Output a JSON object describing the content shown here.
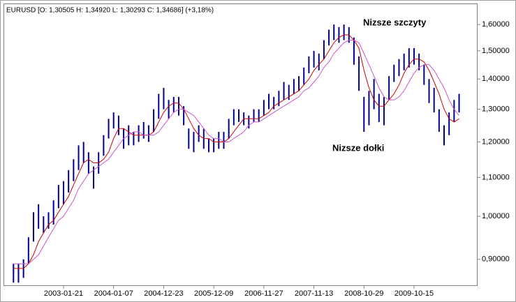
{
  "chart_data": {
    "type": "hilo",
    "title": "EURUSD [O: 1,30505  H: 1,34920  L: 1,30293  C: 1,34686] (+3,18%)",
    "annotations": [
      "Nizsze szczyty",
      "Nizsze dołki"
    ],
    "log_scale": true,
    "grid": false,
    "color": "#00008b",
    "ylim": [
      0.846,
      1.676
    ],
    "yticks": [
      {
        "value": 0.9,
        "label": "0,90000"
      },
      {
        "value": 1.0,
        "label": "1,00000"
      },
      {
        "value": 1.1,
        "label": "1,10000"
      },
      {
        "value": 1.2,
        "label": "1,20000"
      },
      {
        "value": 1.3,
        "label": "1,30000"
      },
      {
        "value": 1.4,
        "label": "1,40000"
      },
      {
        "value": 1.5,
        "label": "1,50000"
      },
      {
        "value": 1.6,
        "label": "1,60000"
      }
    ],
    "categories": [
      null,
      null,
      null,
      null,
      null,
      null,
      null,
      null,
      null,
      null,
      "2003-01-21",
      null,
      null,
      null,
      null,
      null,
      null,
      null,
      null,
      null,
      "2004-01-07",
      null,
      null,
      null,
      null,
      null,
      null,
      null,
      null,
      null,
      "2004-12-23",
      null,
      null,
      null,
      null,
      null,
      null,
      null,
      null,
      null,
      "2005-12-09",
      null,
      null,
      null,
      null,
      null,
      null,
      null,
      null,
      null,
      "2006-11-27",
      null,
      null,
      null,
      null,
      null,
      null,
      null,
      null,
      null,
      "2007-11-13",
      null,
      null,
      null,
      null,
      null,
      null,
      null,
      null,
      null,
      "2008-10-29",
      null,
      null,
      null,
      null,
      null,
      null,
      null,
      null,
      null,
      "2009-10-15",
      null,
      null,
      null,
      null,
      null,
      null,
      null,
      null,
      null
    ],
    "high": [
      0.89,
      0.89,
      0.9,
      0.95,
      1.01,
      1.03,
      1.0,
      1.01,
      1.04,
      1.08,
      1.09,
      1.12,
      1.15,
      1.19,
      1.2,
      1.17,
      1.13,
      1.17,
      1.22,
      1.27,
      1.29,
      1.28,
      1.24,
      1.25,
      1.23,
      1.25,
      1.26,
      1.25,
      1.3,
      1.35,
      1.37,
      1.33,
      1.34,
      1.34,
      1.31,
      1.24,
      1.23,
      1.25,
      1.24,
      1.21,
      1.21,
      1.23,
      1.23,
      1.27,
      1.3,
      1.3,
      1.29,
      1.28,
      1.3,
      1.3,
      1.33,
      1.35,
      1.34,
      1.36,
      1.39,
      1.38,
      1.4,
      1.41,
      1.44,
      1.48,
      1.5,
      1.49,
      1.54,
      1.58,
      1.6,
      1.59,
      1.6,
      1.59,
      1.55,
      1.48,
      1.34,
      1.36,
      1.4,
      1.35,
      1.34,
      1.41,
      1.45,
      1.47,
      1.49,
      1.51,
      1.51,
      1.49,
      1.45,
      1.4,
      1.37,
      1.3,
      1.25,
      1.29,
      1.33,
      1.35
    ],
    "low": [
      0.85,
      0.85,
      0.86,
      0.89,
      0.94,
      0.97,
      0.96,
      0.97,
      0.98,
      1.02,
      1.03,
      1.06,
      1.09,
      1.12,
      1.14,
      1.11,
      1.07,
      1.11,
      1.16,
      1.21,
      1.24,
      1.22,
      1.18,
      1.19,
      1.19,
      1.2,
      1.21,
      1.2,
      1.23,
      1.27,
      1.3,
      1.27,
      1.29,
      1.28,
      1.25,
      1.18,
      1.17,
      1.2,
      1.18,
      1.17,
      1.17,
      1.18,
      1.18,
      1.21,
      1.25,
      1.26,
      1.25,
      1.24,
      1.26,
      1.26,
      1.28,
      1.3,
      1.3,
      1.31,
      1.33,
      1.33,
      1.35,
      1.36,
      1.38,
      1.42,
      1.44,
      1.43,
      1.47,
      1.52,
      1.54,
      1.53,
      1.54,
      1.53,
      1.45,
      1.36,
      1.23,
      1.25,
      1.3,
      1.26,
      1.25,
      1.33,
      1.39,
      1.41,
      1.43,
      1.44,
      1.45,
      1.43,
      1.38,
      1.32,
      1.29,
      1.23,
      1.19,
      1.22,
      1.26,
      1.29
    ],
    "moving_averages": [
      {
        "color": "#cc0000",
        "values": [
          0.88,
          0.88,
          0.88,
          0.89,
          0.91,
          0.94,
          0.96,
          0.98,
          0.99,
          1.01,
          1.03,
          1.05,
          1.08,
          1.11,
          1.14,
          1.15,
          1.14,
          1.14,
          1.15,
          1.17,
          1.21,
          1.24,
          1.24,
          1.23,
          1.22,
          1.22,
          1.22,
          1.22,
          1.23,
          1.26,
          1.29,
          1.31,
          1.32,
          1.32,
          1.3,
          1.27,
          1.24,
          1.22,
          1.21,
          1.21,
          1.2,
          1.2,
          1.2,
          1.21,
          1.23,
          1.25,
          1.27,
          1.27,
          1.27,
          1.27,
          1.28,
          1.29,
          1.31,
          1.32,
          1.33,
          1.34,
          1.35,
          1.36,
          1.38,
          1.4,
          1.43,
          1.45,
          1.47,
          1.5,
          1.53,
          1.55,
          1.56,
          1.56,
          1.54,
          1.51,
          1.43,
          1.37,
          1.33,
          1.31,
          1.31,
          1.33,
          1.35,
          1.38,
          1.42,
          1.45,
          1.47,
          1.47,
          1.46,
          1.43,
          1.39,
          1.35,
          1.3,
          1.27,
          1.26,
          1.27
        ]
      },
      {
        "color": "#cc55cc",
        "values": [
          0.89,
          0.89,
          0.89,
          0.89,
          0.9,
          0.91,
          0.93,
          0.95,
          0.97,
          0.99,
          1.0,
          1.02,
          1.04,
          1.07,
          1.09,
          1.11,
          1.12,
          1.13,
          1.14,
          1.15,
          1.17,
          1.19,
          1.21,
          1.22,
          1.23,
          1.23,
          1.22,
          1.22,
          1.22,
          1.23,
          1.25,
          1.27,
          1.29,
          1.3,
          1.3,
          1.29,
          1.28,
          1.26,
          1.24,
          1.22,
          1.21,
          1.21,
          1.2,
          1.2,
          1.21,
          1.22,
          1.23,
          1.25,
          1.26,
          1.26,
          1.27,
          1.28,
          1.29,
          1.3,
          1.31,
          1.32,
          1.33,
          1.34,
          1.36,
          1.37,
          1.39,
          1.41,
          1.44,
          1.46,
          1.49,
          1.51,
          1.53,
          1.54,
          1.54,
          1.53,
          1.49,
          1.45,
          1.41,
          1.37,
          1.34,
          1.33,
          1.33,
          1.34,
          1.36,
          1.39,
          1.42,
          1.44,
          1.45,
          1.45,
          1.43,
          1.4,
          1.37,
          1.33,
          1.3,
          1.28
        ]
      }
    ]
  }
}
